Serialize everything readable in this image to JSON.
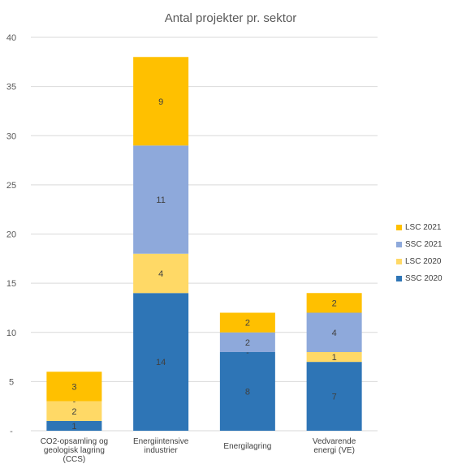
{
  "chart_data": {
    "type": "bar",
    "stacked": true,
    "title": "Antal projekter pr. sektor",
    "xlabel": "",
    "ylabel": "",
    "ylim": [
      0,
      40
    ],
    "yticks": [
      0,
      5,
      10,
      15,
      20,
      25,
      30,
      35,
      40
    ],
    "ytick_labels": [
      "-",
      "5",
      "10",
      "15",
      "20",
      "25",
      "30",
      "35",
      "40"
    ],
    "grid": true,
    "legend_position": "right",
    "categories": [
      "CO2-opsamling og geologisk lagring (CCS)",
      "Energiintensive industrier",
      "Energilagring",
      "Vedvarende energi (VE)"
    ],
    "category_lines": [
      [
        "CO2-opsamling og",
        "geologisk lagring",
        "(CCS)"
      ],
      [
        "Energiintensive",
        "industrier"
      ],
      [
        "Energilagring"
      ],
      [
        "Vedvarende",
        "energi (VE)"
      ]
    ],
    "series": [
      {
        "name": "SSC 2020",
        "color": "#2E75B6",
        "values": [
          1,
          14,
          8,
          7
        ],
        "labels": [
          "1",
          "14",
          "8",
          "7"
        ]
      },
      {
        "name": "LSC 2020",
        "color": "#FFD966",
        "values": [
          2,
          4,
          0,
          1
        ],
        "labels": [
          "2",
          "4",
          "-",
          "1"
        ]
      },
      {
        "name": "SSC 2021",
        "color": "#8EA9DB",
        "values": [
          0,
          11,
          2,
          4
        ],
        "labels": [
          "-",
          "11",
          "2",
          "4"
        ]
      },
      {
        "name": "LSC 2021",
        "color": "#FFC000",
        "values": [
          3,
          9,
          2,
          2
        ],
        "labels": [
          "3",
          "9",
          "2",
          "2"
        ]
      }
    ],
    "legend_order": [
      "LSC 2021",
      "SSC 2021",
      "LSC 2020",
      "SSC 2020"
    ]
  }
}
